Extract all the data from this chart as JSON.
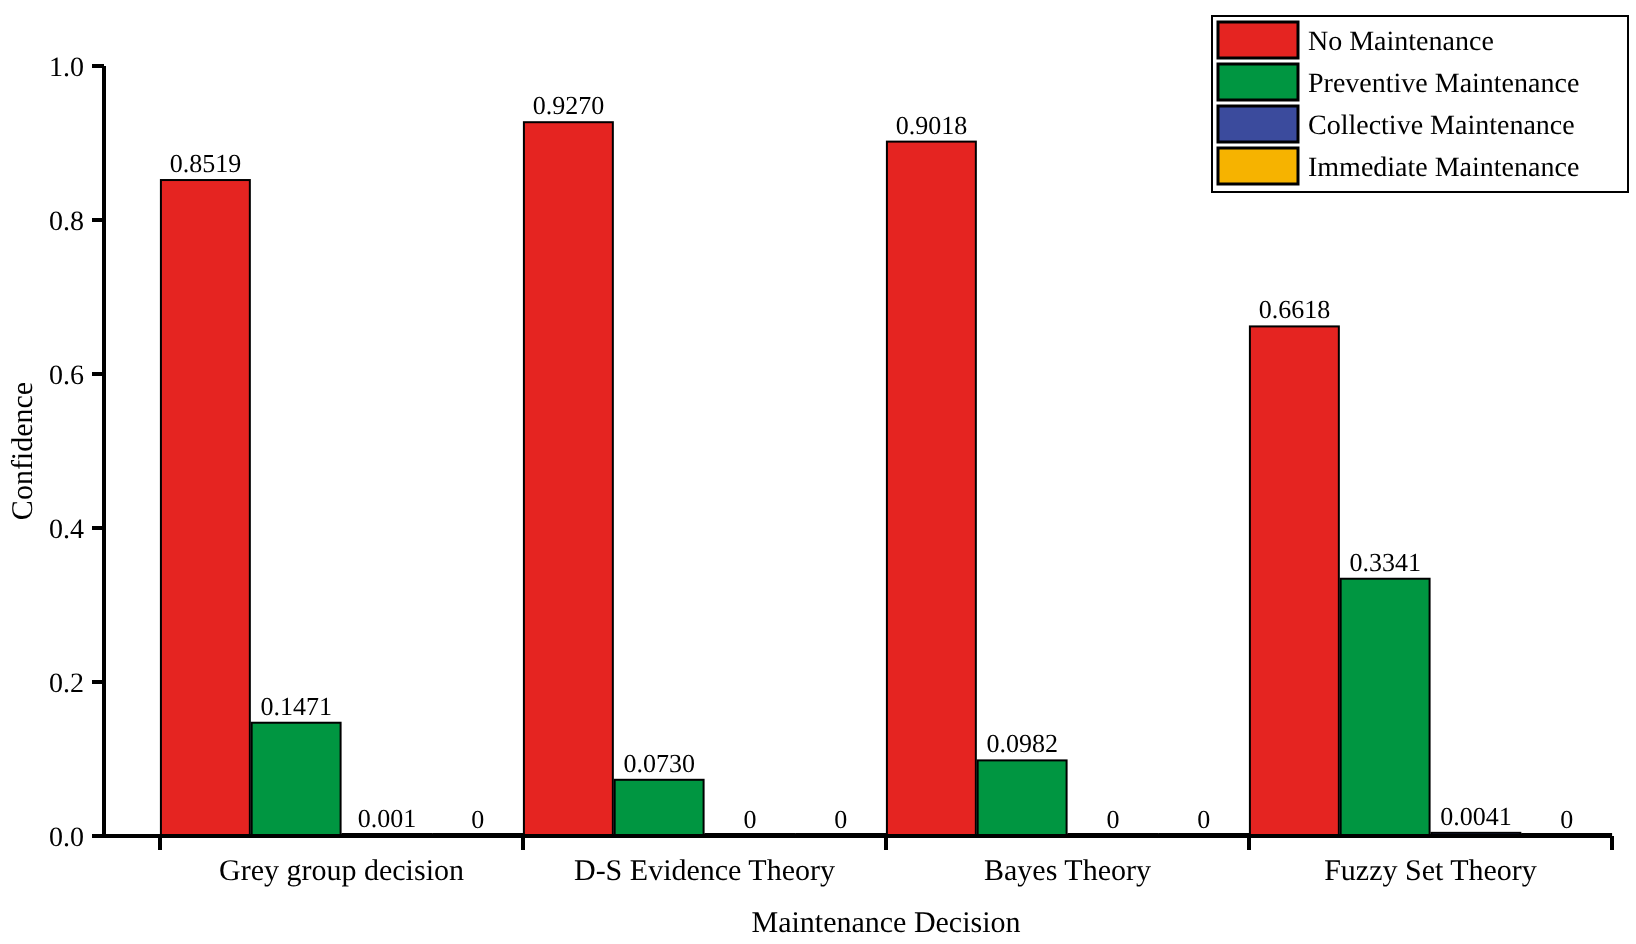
{
  "chart_data": {
    "type": "bar",
    "xlabel": "Maintenance Decision",
    "ylabel": "Confidence",
    "categories": [
      "Grey group decision",
      "D-S Evidence Theory",
      "Bayes Theory",
      "Fuzzy Set Theory"
    ],
    "series": [
      {
        "name": "No Maintenance",
        "color": "#e52421",
        "values": [
          0.8519,
          0.927,
          0.9018,
          0.6618
        ],
        "value_labels": [
          "0.8519",
          "0.9270",
          "0.9018",
          "0.6618"
        ]
      },
      {
        "name": "Preventive Maintenance",
        "color": "#009641",
        "values": [
          0.1471,
          0.073,
          0.0982,
          0.3341
        ],
        "value_labels": [
          "0.1471",
          "0.0730",
          "0.0982",
          "0.3341"
        ]
      },
      {
        "name": "Collective Maintenance",
        "color": "#3b4b9d",
        "values": [
          0.001,
          0,
          0,
          0.0041
        ],
        "value_labels": [
          "0.001",
          "0",
          "0",
          "0.0041"
        ]
      },
      {
        "name": "Immediate Maintenance",
        "color": "#f6b300",
        "values": [
          0,
          0,
          0,
          0
        ],
        "value_labels": [
          "0",
          "0",
          "0",
          "0"
        ]
      }
    ],
    "ylim": [
      0,
      1
    ],
    "yticks": [
      {
        "value": 0,
        "label": "0.0"
      },
      {
        "value": 0.2,
        "label": "0.2"
      },
      {
        "value": 0.4,
        "label": "0.4"
      },
      {
        "value": 0.6,
        "label": "0.6"
      },
      {
        "value": 0.8,
        "label": "0.8"
      },
      {
        "value": 1,
        "label": "1.0"
      }
    ],
    "grid": false,
    "legend": "top right"
  }
}
